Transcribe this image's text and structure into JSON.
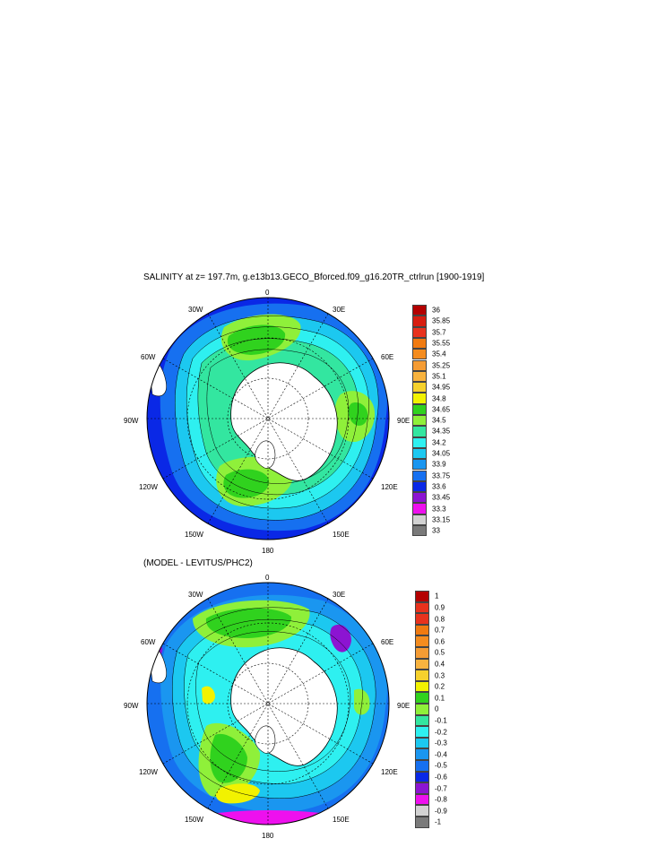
{
  "top_panel": {
    "title": "SALINITY at z= 197.7m, g.e13b13.GECO_Bforced.f09_g16.20TR_ctrlrun [1900-1919]",
    "lon_labels": {
      "n0": "0",
      "n30w": "30W",
      "n30e": "30E",
      "n60w": "60W",
      "n60e": "60E",
      "n90w": "90W",
      "n90e": "90E",
      "n120w": "120W",
      "n120e": "120E",
      "n150w": "150W",
      "n150e": "150E",
      "n180": "180"
    },
    "colorbar": [
      {
        "label": "36",
        "color": "#b40000"
      },
      {
        "label": "35.85",
        "color": "#d71d10"
      },
      {
        "label": "35.7",
        "color": "#e8321d"
      },
      {
        "label": "35.55",
        "color": "#f07a10"
      },
      {
        "label": "35.4",
        "color": "#f48c1f"
      },
      {
        "label": "35.25",
        "color": "#f59c34"
      },
      {
        "label": "35.1",
        "color": "#f8b33f"
      },
      {
        "label": "34.95",
        "color": "#f6d12c"
      },
      {
        "label": "34.8",
        "color": "#f2f200"
      },
      {
        "label": "34.65",
        "color": "#30d21e"
      },
      {
        "label": "34.5",
        "color": "#8ff03a"
      },
      {
        "label": "34.35",
        "color": "#33e6a0"
      },
      {
        "label": "34.2",
        "color": "#2ef0f0"
      },
      {
        "label": "34.05",
        "color": "#1cc8f0"
      },
      {
        "label": "33.9",
        "color": "#1a96f0"
      },
      {
        "label": "33.75",
        "color": "#1670f0"
      },
      {
        "label": "33.6",
        "color": "#0a28e6"
      },
      {
        "label": "33.45",
        "color": "#8c14d2"
      },
      {
        "label": "33.3",
        "color": "#ee10ee"
      },
      {
        "label": "33.15",
        "color": "#d2d2d2"
      },
      {
        "label": "33",
        "color": "#7a7a7a"
      }
    ]
  },
  "bottom_panel": {
    "title": "(MODEL - LEVITUS/PHC2)",
    "lon_labels": {
      "n0": "0",
      "n30w": "30W",
      "n30e": "30E",
      "n60w": "60W",
      "n60e": "60E",
      "n90w": "90W",
      "n90e": "90E",
      "n120w": "120W",
      "n120e": "120E",
      "n150w": "150W",
      "n150e": "150E",
      "n180": "180"
    },
    "colorbar": [
      {
        "label": "1",
        "color": "#b40000"
      },
      {
        "label": "0.9",
        "color": "#e8321d"
      },
      {
        "label": "0.8",
        "color": "#e8321d"
      },
      {
        "label": "0.7",
        "color": "#f07a10"
      },
      {
        "label": "0.6",
        "color": "#f48c1f"
      },
      {
        "label": "0.5",
        "color": "#f59c34"
      },
      {
        "label": "0.4",
        "color": "#f8b33f"
      },
      {
        "label": "0.3",
        "color": "#f6d12c"
      },
      {
        "label": "0.2",
        "color": "#f2f200"
      },
      {
        "label": "0.1",
        "color": "#30d21e"
      },
      {
        "label": "0",
        "color": "#8ff03a"
      },
      {
        "label": "-0.1",
        "color": "#33e6a0"
      },
      {
        "label": "-0.2",
        "color": "#2ef0f0"
      },
      {
        "label": "-0.3",
        "color": "#1cc8f0"
      },
      {
        "label": "-0.4",
        "color": "#1a96f0"
      },
      {
        "label": "-0.5",
        "color": "#1670f0"
      },
      {
        "label": "-0.6",
        "color": "#0a28e6"
      },
      {
        "label": "-0.7",
        "color": "#8c14d2"
      },
      {
        "label": "-0.8",
        "color": "#ee10ee"
      },
      {
        "label": "-0.9",
        "color": "#d2d2d2"
      },
      {
        "label": "-1",
        "color": "#7a7a7a"
      }
    ]
  }
}
